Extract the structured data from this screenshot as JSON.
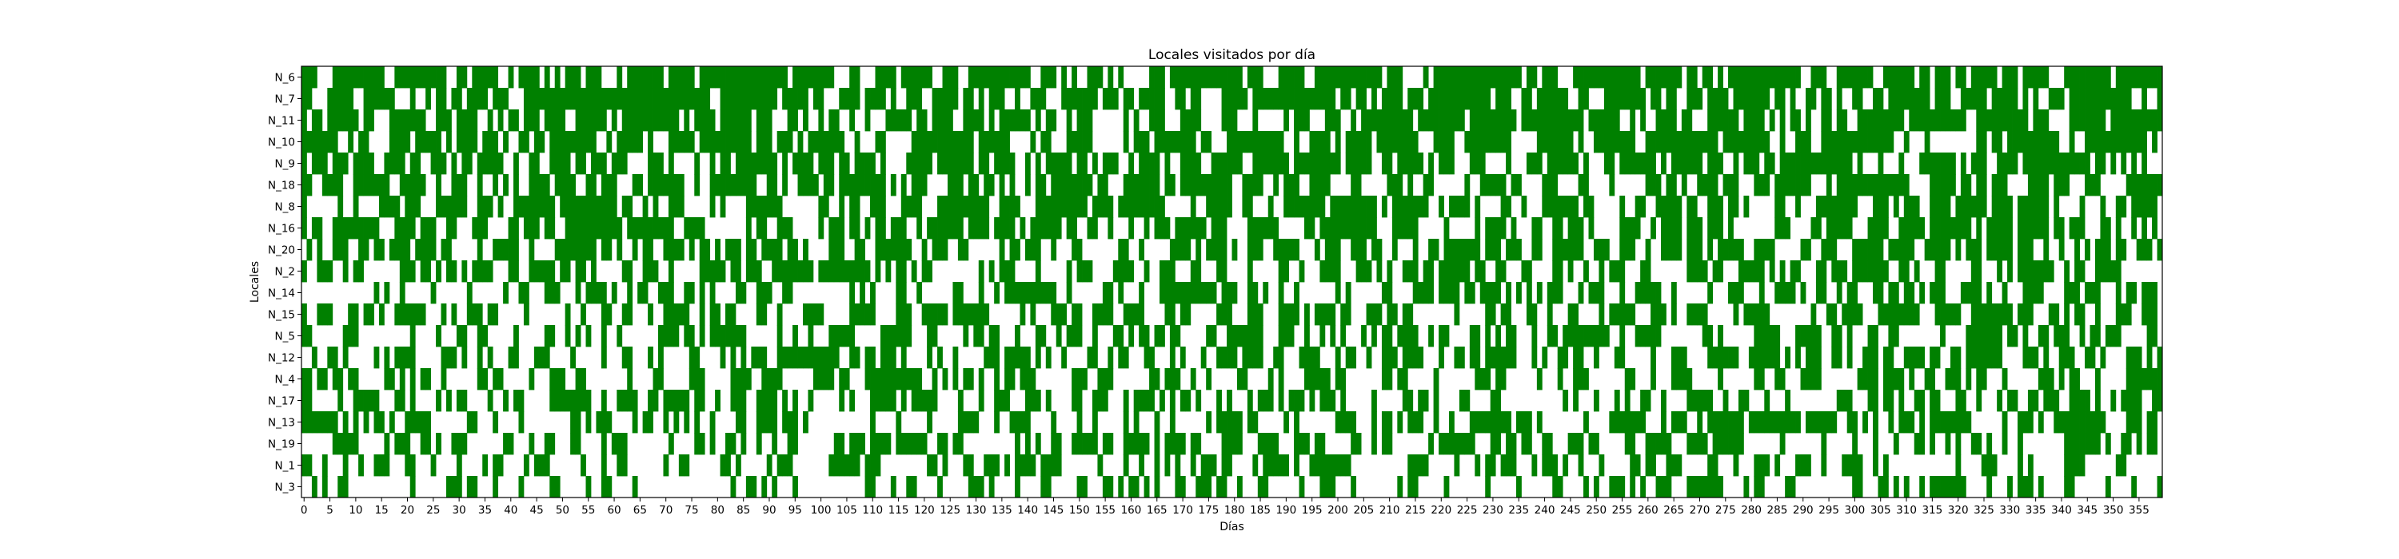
{
  "chart_data": {
    "type": "heatmap",
    "title": "Locales visitados por día",
    "xlabel": "Días",
    "ylabel": "Locales",
    "xlim": [
      0,
      359
    ],
    "x_ticks": [
      0,
      5,
      10,
      15,
      20,
      25,
      30,
      35,
      40,
      45,
      50,
      55,
      60,
      65,
      70,
      75,
      80,
      85,
      90,
      95,
      100,
      105,
      110,
      115,
      120,
      125,
      130,
      135,
      140,
      145,
      150,
      155,
      160,
      165,
      170,
      175,
      180,
      185,
      190,
      195,
      200,
      205,
      210,
      215,
      220,
      225,
      230,
      235,
      240,
      245,
      250,
      255,
      260,
      265,
      270,
      275,
      280,
      285,
      290,
      295,
      300,
      305,
      310,
      315,
      320,
      325,
      330,
      335,
      340,
      345,
      350,
      355
    ],
    "rows": [
      "N_6",
      "N_7",
      "N_11",
      "N_10",
      "N_9",
      "N_18",
      "N_8",
      "N_16",
      "N_20",
      "N_2",
      "N_14",
      "N_15",
      "N_5",
      "N_12",
      "N_4",
      "N_17",
      "N_13",
      "N_19",
      "N_1",
      "N_3"
    ],
    "row_visit_probability": [
      0.68,
      0.64,
      0.62,
      0.6,
      0.58,
      0.56,
      0.54,
      0.52,
      0.5,
      0.48,
      0.46,
      0.45,
      0.44,
      0.43,
      0.42,
      0.41,
      0.4,
      0.39,
      0.38,
      0.37
    ],
    "days": 360,
    "colors": {
      "visited": "#008000",
      "not_visited": "#ffffff",
      "frame": "#000000"
    },
    "grid": false,
    "legend": "none"
  }
}
